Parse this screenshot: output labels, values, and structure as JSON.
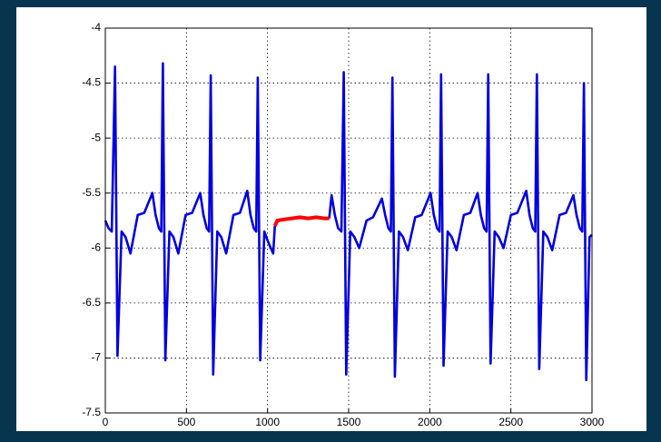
{
  "chart_data": {
    "type": "line",
    "x": [
      0,
      20,
      40,
      60,
      75,
      100,
      125,
      155,
      200,
      240,
      290,
      310,
      330,
      345,
      355,
      370,
      395,
      420,
      450,
      495,
      535,
      585,
      605,
      625,
      640,
      650,
      665,
      690,
      715,
      745,
      790,
      830,
      875,
      895,
      915,
      930,
      940,
      955,
      980,
      1005,
      1035,
      1045,
      1060,
      1100,
      1150,
      1200,
      1250,
      1300,
      1350,
      1380,
      1395,
      1415,
      1435,
      1455,
      1470,
      1485,
      1510,
      1535,
      1565,
      1610,
      1650,
      1705,
      1725,
      1745,
      1760,
      1770,
      1785,
      1810,
      1835,
      1865,
      1910,
      1950,
      2005,
      2025,
      2045,
      2060,
      2070,
      2085,
      2110,
      2135,
      2165,
      2210,
      2250,
      2295,
      2315,
      2335,
      2350,
      2360,
      2375,
      2400,
      2425,
      2455,
      2500,
      2540,
      2595,
      2615,
      2635,
      2650,
      2660,
      2675,
      2700,
      2725,
      2755,
      2800,
      2840,
      2885,
      2905,
      2925,
      2940,
      2950,
      2965,
      2985,
      3000
    ],
    "series": [
      {
        "color": "#0000e0",
        "values": [
          -5.75,
          -5.82,
          -5.85,
          -4.35,
          -6.98,
          -5.85,
          -5.9,
          -6.05,
          -5.7,
          -5.68,
          -5.5,
          -5.7,
          -5.82,
          -5.85,
          -4.32,
          -7.02,
          -5.85,
          -5.9,
          -6.05,
          -5.7,
          -5.68,
          -5.5,
          -5.7,
          -5.82,
          -5.85,
          -4.43,
          -7.15,
          -5.85,
          -5.9,
          -6.05,
          -5.7,
          -5.68,
          -5.48,
          -5.7,
          -5.82,
          -5.85,
          -4.45,
          -7.02,
          -5.85,
          -5.95,
          -6.05,
          -5.8,
          null,
          null,
          null,
          null,
          null,
          null,
          null,
          -5.73,
          -5.52,
          -5.7,
          -5.82,
          -5.85,
          -4.4,
          -7.15,
          -5.85,
          -5.9,
          -6.0,
          -5.75,
          -5.72,
          -5.55,
          -5.7,
          -5.82,
          -5.85,
          -4.45,
          -7.17,
          -5.85,
          -5.9,
          -6.02,
          -5.72,
          -5.7,
          -5.5,
          -5.7,
          -5.82,
          -5.85,
          -4.42,
          -7.07,
          -5.85,
          -5.9,
          -6.02,
          -5.7,
          -5.68,
          -5.5,
          -5.7,
          -5.82,
          -5.85,
          -4.42,
          -7.05,
          -5.85,
          -5.9,
          -6.0,
          -5.7,
          -5.68,
          -5.48,
          -5.7,
          -5.82,
          -5.85,
          -4.42,
          -7.1,
          -5.85,
          -5.9,
          -6.02,
          -5.7,
          -5.68,
          -5.52,
          -5.7,
          -5.82,
          -5.85,
          -4.5,
          -7.2,
          -5.9,
          -5.88
        ]
      },
      {
        "color": "#ff0000",
        "values": [
          null,
          null,
          null,
          null,
          null,
          null,
          null,
          null,
          null,
          null,
          null,
          null,
          null,
          null,
          null,
          null,
          null,
          null,
          null,
          null,
          null,
          null,
          null,
          null,
          null,
          null,
          null,
          null,
          null,
          null,
          null,
          null,
          null,
          null,
          null,
          null,
          null,
          null,
          null,
          null,
          null,
          -5.8,
          -5.75,
          -5.74,
          -5.73,
          -5.72,
          -5.73,
          -5.72,
          -5.73,
          -5.73,
          null,
          null,
          null,
          null,
          null,
          null,
          null,
          null,
          null,
          null,
          null,
          null,
          null,
          null,
          null,
          null,
          null,
          null,
          null,
          null,
          null,
          null,
          null,
          null,
          null,
          null,
          null,
          null,
          null,
          null,
          null,
          null,
          null,
          null,
          null,
          null,
          null,
          null,
          null,
          null,
          null,
          null,
          null,
          null,
          null,
          null,
          null,
          null,
          null,
          null,
          null,
          null,
          null,
          null,
          null,
          null,
          null,
          null,
          null,
          null,
          null,
          null,
          null
        ]
      }
    ],
    "xlim": [
      0,
      3000
    ],
    "xticks": [
      0,
      500,
      1000,
      1500,
      2000,
      2500,
      3000
    ],
    "ylim": [
      -7.5,
      -4
    ],
    "yticks": [
      -7.5,
      -7,
      -6.5,
      -6,
      -5.5,
      -5,
      -4.5,
      -4
    ],
    "grid": true
  }
}
